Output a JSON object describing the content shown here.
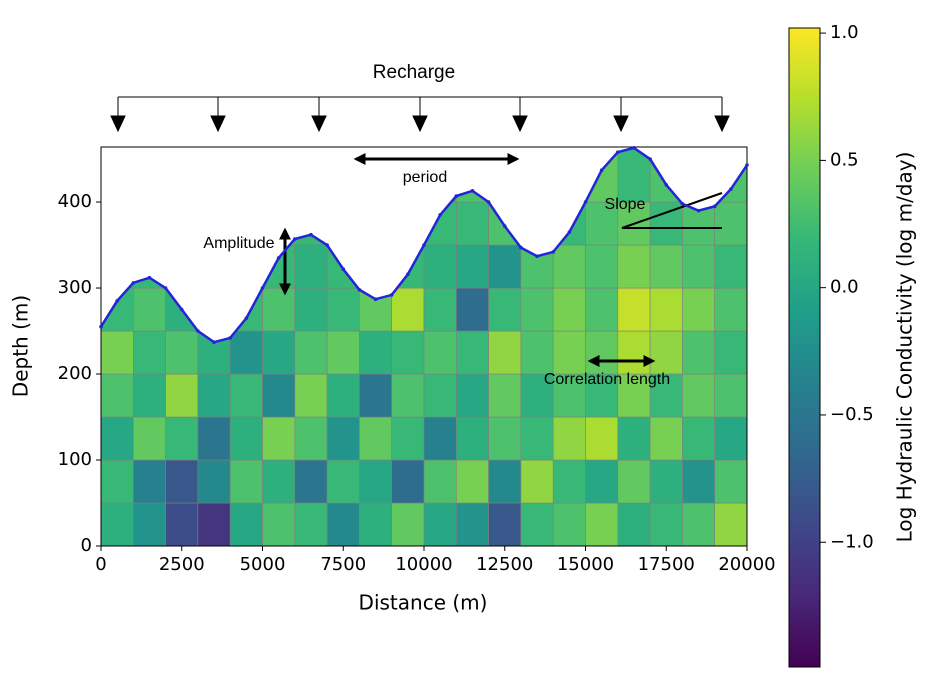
{
  "chart_data": {
    "type": "heatmap",
    "xlabel": "Distance (m)",
    "ylabel": "Depth (m)",
    "xlim": [
      0,
      20000
    ],
    "ylim": [
      0,
      464
    ],
    "xticks": [
      0,
      2500,
      5000,
      7500,
      10000,
      12500,
      15000,
      17500,
      20000
    ],
    "yticks": [
      0,
      100,
      200,
      300,
      400
    ],
    "colormap": "viridis",
    "clim": [
      -1.49,
      1.02
    ],
    "colorbar_label": "Log Hydraulic Conductivity (log m/day)",
    "colorbar_ticks": [
      {
        "value": 1.0,
        "label": "1.0"
      },
      {
        "value": 0.5,
        "label": "0.5"
      },
      {
        "value": 0.0,
        "label": "0.0"
      },
      {
        "value": -0.5,
        "label": "−0.5"
      },
      {
        "value": -1.0,
        "label": "−1.0"
      }
    ],
    "xedges": [
      0,
      1000,
      2000,
      3000,
      4000,
      5000,
      6000,
      7000,
      8000,
      9000,
      10000,
      11000,
      12000,
      13000,
      14000,
      15000,
      16000,
      17000,
      18000,
      19000,
      20000
    ],
    "yedges": [
      0,
      50,
      100,
      150,
      200,
      250,
      300,
      350,
      400,
      464
    ],
    "z": [
      [
        0.1,
        -0.2,
        -0.9,
        -1.1,
        0.0,
        0.3,
        0.2,
        -0.3,
        0.1,
        0.4,
        0.0,
        -0.2,
        -0.8,
        0.2,
        0.3,
        0.5,
        0.1,
        0.2,
        0.3,
        0.6
      ],
      [
        0.2,
        -0.4,
        -0.8,
        -0.3,
        0.3,
        0.1,
        -0.5,
        0.2,
        0.0,
        -0.6,
        0.3,
        0.5,
        -0.3,
        0.6,
        0.2,
        0.0,
        0.4,
        0.1,
        -0.2,
        0.3
      ],
      [
        0.0,
        0.4,
        0.2,
        -0.5,
        0.1,
        0.5,
        0.3,
        -0.2,
        0.4,
        0.2,
        -0.4,
        0.1,
        0.3,
        0.2,
        0.6,
        0.7,
        0.1,
        0.5,
        0.2,
        0.0
      ],
      [
        0.3,
        0.1,
        0.6,
        0.0,
        0.2,
        -0.3,
        0.5,
        0.1,
        -0.5,
        0.3,
        0.2,
        0.0,
        0.4,
        0.1,
        0.3,
        0.2,
        0.5,
        0.2,
        0.4,
        0.3
      ],
      [
        0.5,
        0.2,
        0.3,
        0.1,
        -0.2,
        0.0,
        0.3,
        0.4,
        0.1,
        0.2,
        0.3,
        0.2,
        0.6,
        0.3,
        0.5,
        0.4,
        0.7,
        0.6,
        0.3,
        0.2
      ],
      [
        0.2,
        0.3,
        0.1,
        0.0,
        0.2,
        0.3,
        0.1,
        0.2,
        0.4,
        0.7,
        0.2,
        -0.6,
        0.2,
        0.3,
        0.5,
        0.3,
        0.8,
        0.7,
        0.5,
        0.3
      ],
      [
        0.2,
        0.2,
        0.3,
        0.2,
        0.3,
        0.2,
        0.1,
        0.2,
        0.3,
        0.2,
        0.1,
        0.0,
        -0.2,
        0.3,
        0.4,
        0.3,
        0.5,
        0.4,
        0.3,
        0.2
      ],
      [
        0.2,
        0.2,
        0.2,
        0.2,
        0.1,
        0.3,
        0.2,
        0.0,
        0.2,
        0.3,
        0.2,
        0.2,
        0.3,
        0.1,
        0.2,
        0.3,
        0.4,
        0.2,
        0.3,
        0.3
      ],
      [
        0.2,
        0.2,
        0.2,
        0.2,
        0.2,
        0.2,
        0.2,
        0.2,
        0.2,
        0.2,
        0.1,
        0.3,
        0.2,
        0.2,
        0.3,
        0.4,
        0.2,
        0.3,
        0.2,
        0.3
      ]
    ],
    "surface": {
      "color": "#2424d8",
      "x": [
        0,
        500,
        1000,
        1500,
        2000,
        2500,
        3000,
        3500,
        4000,
        4500,
        5000,
        5500,
        6000,
        6500,
        7000,
        7500,
        8000,
        8500,
        9000,
        9500,
        10000,
        10500,
        11000,
        11500,
        12000,
        12500,
        13000,
        13500,
        14000,
        14500,
        15000,
        15500,
        16000,
        16500,
        17000,
        17500,
        18000,
        18500,
        19000,
        19500,
        20000
      ],
      "y": [
        255,
        285,
        306,
        312,
        300,
        275,
        250,
        237,
        242,
        265,
        300,
        335,
        357,
        362,
        350,
        322,
        298,
        287,
        292,
        316,
        350,
        385,
        407,
        413,
        400,
        372,
        347,
        337,
        342,
        365,
        400,
        437,
        458,
        463,
        450,
        420,
        398,
        390,
        395,
        415,
        443
      ]
    },
    "annotations": {
      "recharge": "Recharge",
      "period": "period",
      "amplitude": "Amplitude",
      "slope": "Slope",
      "correlation": "Correlation length"
    }
  }
}
